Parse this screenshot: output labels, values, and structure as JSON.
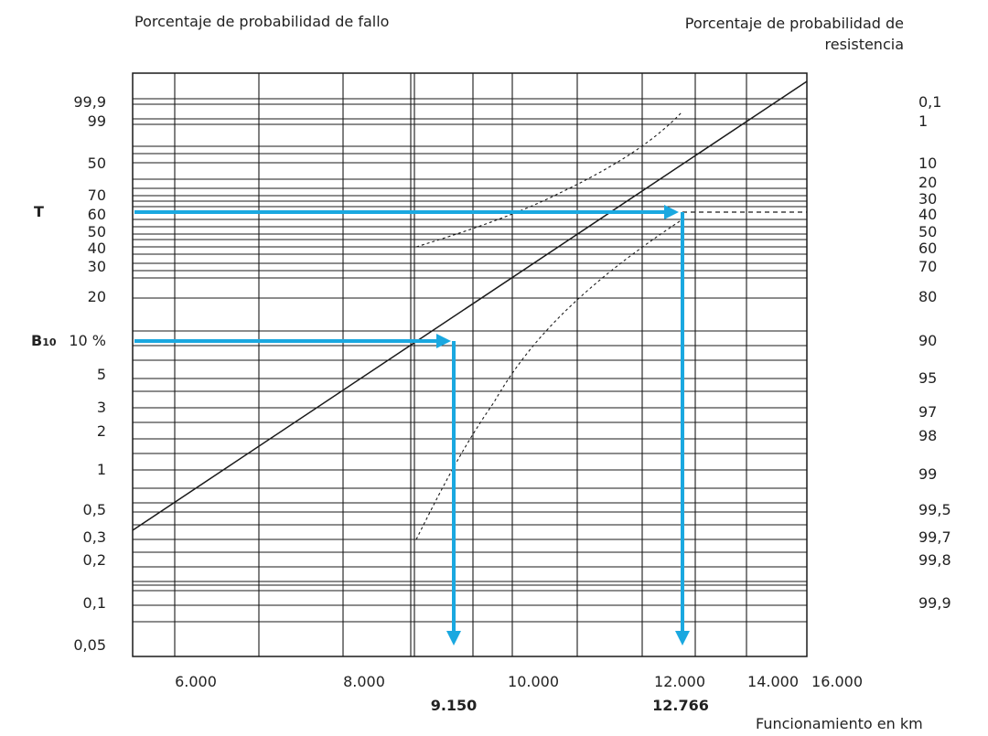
{
  "header": {
    "left_title": "Porcentaje de probabilidad de fallo",
    "right_title_line1": "Porcentaje de probabilidad de",
    "right_title_line2": "resistencia"
  },
  "chart_data": {
    "type": "line",
    "title": "",
    "xlabel": "Funcionamiento en km",
    "ylabel_left": "Porcentaje de probabilidad de fallo",
    "ylabel_right": "Porcentaje de probabilidad de resistencia",
    "x_scale": "log",
    "y_scale": "weibull",
    "grid": true,
    "x_ticks": [
      "6.000",
      "8.000",
      "10.000",
      "12.000",
      "14.000",
      "16.000"
    ],
    "x_ticks_values": [
      6000,
      8000,
      10000,
      12000,
      14000,
      16000
    ],
    "y_ticks_left": [
      {
        "label": "99,9",
        "pct": 99.9
      },
      {
        "label": "99",
        "pct": 99
      },
      {
        "label": "50",
        "pct": 50
      },
      {
        "label": "70",
        "pct": 70
      },
      {
        "label": "60",
        "pct": 60
      },
      {
        "label": "50",
        "pct": 50
      },
      {
        "label": "40",
        "pct": 40
      },
      {
        "label": "30",
        "pct": 30
      },
      {
        "label": "20",
        "pct": 20
      },
      {
        "label": "10 %",
        "pct": 10
      },
      {
        "label": "5",
        "pct": 5
      },
      {
        "label": "3",
        "pct": 3
      },
      {
        "label": "2",
        "pct": 2
      },
      {
        "label": "1",
        "pct": 1
      },
      {
        "label": "0,5",
        "pct": 0.5
      },
      {
        "label": "0,3",
        "pct": 0.3
      },
      {
        "label": "0,2",
        "pct": 0.2
      },
      {
        "label": "0,1",
        "pct": 0.1
      },
      {
        "label": "0,05",
        "pct": 0.05
      }
    ],
    "y_ticks_right": [
      "0,1",
      "1",
      "10",
      "20",
      "30",
      "40",
      "50",
      "60",
      "70",
      "80",
      "90",
      "95",
      "97",
      "98",
      "99",
      "99,5",
      "99,7",
      "99,8",
      "99,9"
    ],
    "markers": [
      {
        "label": "T",
        "level_label": "60",
        "x_value": 12766,
        "x_label": "12.766"
      },
      {
        "label": "B",
        "subscript": "10",
        "level_label": "10 %",
        "x_value": 9150,
        "x_label": "9.150"
      }
    ],
    "series": [
      {
        "style": "solid",
        "points": [
          [
            5500,
            0.35
          ],
          [
            15000,
            99.9
          ]
        ]
      },
      {
        "style": "dashed",
        "points": [
          [
            8800,
            40
          ],
          [
            9500,
            50
          ],
          [
            10000,
            60
          ],
          [
            11500,
            90
          ],
          [
            12500,
            99
          ]
        ]
      },
      {
        "style": "dashed",
        "points": [
          [
            8800,
            0.3
          ],
          [
            9150,
            1
          ],
          [
            9800,
            3
          ],
          [
            10500,
            10
          ],
          [
            11500,
            30
          ],
          [
            12500,
            60
          ]
        ]
      }
    ],
    "colors": {
      "arrow": "#1aa8e0",
      "line": "#1a1a1a",
      "grid": "#1a1a1a"
    }
  }
}
